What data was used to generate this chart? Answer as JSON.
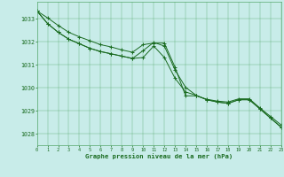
{
  "bg_color": "#c8ece9",
  "grid_color": "#5aaa70",
  "line_color": "#1a6b20",
  "xlabel": "Graphe pression niveau de la mer (hPa)",
  "xlim": [
    0,
    23
  ],
  "ylim": [
    1027.5,
    1033.75
  ],
  "yticks": [
    1028,
    1029,
    1030,
    1031,
    1032,
    1033
  ],
  "xticks": [
    0,
    1,
    2,
    3,
    4,
    5,
    6,
    7,
    8,
    9,
    10,
    11,
    12,
    13,
    14,
    15,
    16,
    17,
    18,
    19,
    20,
    21,
    22,
    23
  ],
  "series1": [
    1033.35,
    1033.05,
    1032.72,
    1032.42,
    1032.22,
    1032.05,
    1031.88,
    1031.78,
    1031.65,
    1031.55,
    1031.88,
    1031.95,
    1031.95,
    1030.9,
    1029.65,
    1029.65,
    1029.5,
    1029.42,
    1029.38,
    1029.52,
    1029.52,
    1029.12,
    1028.75,
    1028.38
  ],
  "series2": [
    1033.35,
    1032.8,
    1032.42,
    1032.12,
    1031.92,
    1031.72,
    1031.58,
    1031.48,
    1031.38,
    1031.28,
    1031.32,
    1031.82,
    1031.32,
    1030.42,
    1029.82,
    1029.67,
    1029.48,
    1029.38,
    1029.32,
    1029.48,
    1029.48,
    1029.08,
    1028.68,
    1028.28
  ],
  "series3": [
    1033.35,
    1032.8,
    1032.42,
    1032.12,
    1031.92,
    1031.72,
    1031.58,
    1031.48,
    1031.38,
    1031.28,
    1031.62,
    1031.98,
    1031.82,
    1030.78,
    1030.02,
    1029.67,
    1029.48,
    1029.38,
    1029.32,
    1029.48,
    1029.48,
    1029.08,
    1028.68,
    1028.28
  ],
  "figsize": [
    3.2,
    2.0
  ],
  "dpi": 100
}
